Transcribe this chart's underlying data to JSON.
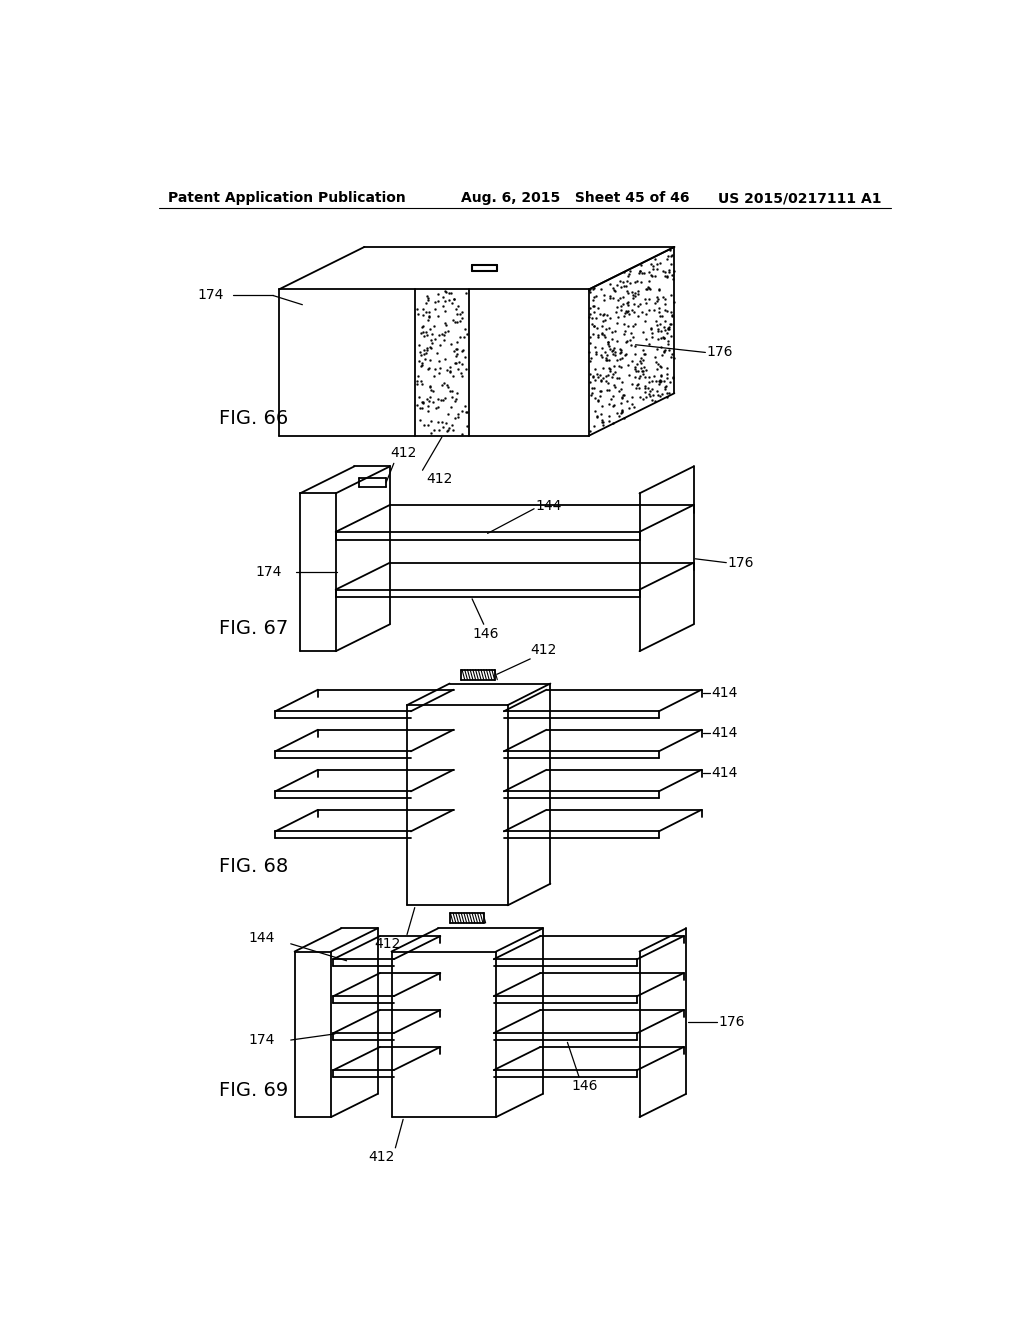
{
  "header_left": "Patent Application Publication",
  "header_mid": "Aug. 6, 2015   Sheet 45 of 46",
  "header_right": "US 2015/0217111 A1",
  "fig66_label": "FIG. 66",
  "fig67_label": "FIG. 67",
  "fig68_label": "FIG. 68",
  "fig69_label": "FIG. 69",
  "bg_color": "#ffffff",
  "line_color": "#000000",
  "label_fontsize": 10,
  "header_fontsize": 10,
  "fig_label_fontsize": 14
}
